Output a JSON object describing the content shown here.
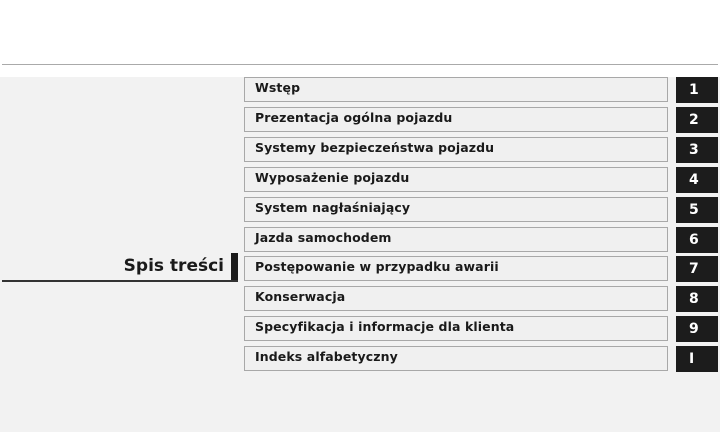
{
  "title": "Spis treści",
  "chapters": [
    {
      "label": "Wstęp",
      "number": "1"
    },
    {
      "label": "Prezentacja ogólna pojazdu",
      "number": "2"
    },
    {
      "label": "Systemy bezpieczeństwa pojazdu",
      "number": "3"
    },
    {
      "label": "Wyposażenie pojazdu",
      "number": "4"
    },
    {
      "label": "System nagłaśniający",
      "number": "5"
    },
    {
      "label": "Jazda samochodem",
      "number": "6"
    },
    {
      "label": "Postępowanie w przypadku awarii",
      "number": "7"
    },
    {
      "label": "Konserwacja",
      "number": "8"
    },
    {
      "label": "Specyfikacja i informacje dla klienta",
      "number": "9"
    },
    {
      "label": "Indeks alfabetyczny",
      "number": "I"
    }
  ]
}
